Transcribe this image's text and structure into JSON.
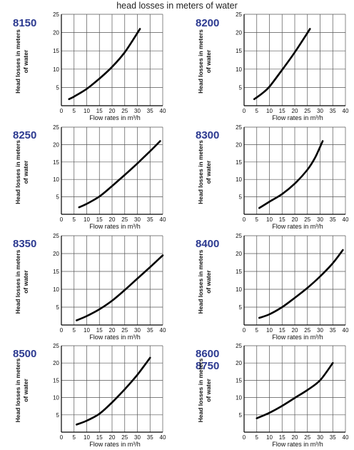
{
  "page": {
    "title": "head losses in meters of water"
  },
  "colors": {
    "model_label": "#2b3990",
    "curve": "#000000",
    "grid": "#555555"
  },
  "chart_data": [
    {
      "type": "line",
      "model_labels": [
        "8150"
      ],
      "ylabel_lines": [
        "Head losses in meters",
        "of water"
      ],
      "xlabel": "Flow rates in m³/h",
      "xlim": [
        0,
        40
      ],
      "ylim": [
        0,
        25
      ],
      "xticks": [
        0,
        5,
        10,
        15,
        20,
        25,
        30,
        35,
        40
      ],
      "yticks": [
        5,
        10,
        15,
        20,
        25
      ],
      "grid": true,
      "series": [
        {
          "x": [
            3,
            5,
            10,
            15,
            20,
            25,
            31
          ],
          "y": [
            1.8,
            2.5,
            4.6,
            7.4,
            10.6,
            14.6,
            21
          ]
        }
      ]
    },
    {
      "type": "line",
      "model_labels": [
        "8200"
      ],
      "ylabel_lines": [
        "Head losses in meters",
        "of water"
      ],
      "xlabel": "Flow rates in m³/h",
      "xlim": [
        0,
        40
      ],
      "ylim": [
        0,
        25
      ],
      "xticks": [
        0,
        5,
        10,
        15,
        20,
        25,
        30,
        35,
        40
      ],
      "yticks": [
        5,
        10,
        15,
        20,
        25
      ],
      "grid": true,
      "series": [
        {
          "x": [
            4,
            7,
            10,
            15,
            20,
            26
          ],
          "y": [
            1.8,
            3.3,
            5.2,
            9.8,
            14.6,
            21
          ]
        }
      ]
    },
    {
      "type": "line",
      "model_labels": [
        "8250"
      ],
      "ylabel_lines": [
        "Head losses in meters",
        "of water"
      ],
      "xlabel": "Flow rates in m³/h",
      "xlim": [
        0,
        40
      ],
      "ylim": [
        0,
        25
      ],
      "xticks": [
        0,
        5,
        10,
        15,
        20,
        25,
        30,
        35,
        40
      ],
      "yticks": [
        5,
        10,
        15,
        20,
        25
      ],
      "grid": true,
      "series": [
        {
          "x": [
            7,
            10,
            15,
            20,
            25,
            30,
            35,
            39
          ],
          "y": [
            2,
            3,
            5.1,
            8.1,
            11.3,
            14.6,
            18.1,
            21
          ]
        }
      ]
    },
    {
      "type": "line",
      "model_labels": [
        "8300"
      ],
      "ylabel_lines": [
        "Head losses in meters",
        "of water"
      ],
      "xlabel": "Flow rates in m³/h",
      "xlim": [
        0,
        40
      ],
      "ylim": [
        0,
        25
      ],
      "xticks": [
        0,
        5,
        10,
        15,
        20,
        25,
        30,
        35,
        40
      ],
      "yticks": [
        5,
        10,
        15,
        20,
        25
      ],
      "grid": true,
      "series": [
        {
          "x": [
            6,
            10,
            15,
            20,
            25,
            28,
            31
          ],
          "y": [
            1.8,
            3.6,
            5.8,
            8.8,
            12.8,
            16.2,
            21
          ]
        }
      ]
    },
    {
      "type": "line",
      "model_labels": [
        "8350"
      ],
      "ylabel_lines": [
        "Head losses in meters",
        "of water"
      ],
      "xlabel": "Flow rates in m³/h",
      "xlim": [
        0,
        40
      ],
      "ylim": [
        0,
        25
      ],
      "xticks": [
        0,
        5,
        10,
        15,
        20,
        25,
        30,
        35,
        40
      ],
      "yticks": [
        5,
        10,
        15,
        20,
        25
      ],
      "grid": true,
      "series": [
        {
          "x": [
            6,
            10,
            15,
            20,
            25,
            30,
            35,
            40
          ],
          "y": [
            1.3,
            2.5,
            4.4,
            6.8,
            9.8,
            13,
            16.2,
            19.5
          ]
        }
      ]
    },
    {
      "type": "line",
      "model_labels": [
        "8400"
      ],
      "ylabel_lines": [
        "Head losses in meters",
        "of water"
      ],
      "xlabel": "Flow rates in m³/h",
      "xlim": [
        0,
        40
      ],
      "ylim": [
        0,
        25
      ],
      "xticks": [
        0,
        5,
        10,
        15,
        20,
        25,
        30,
        35,
        40
      ],
      "yticks": [
        5,
        10,
        15,
        20,
        25
      ],
      "grid": true,
      "series": [
        {
          "x": [
            6,
            10,
            15,
            20,
            25,
            30,
            35,
            39
          ],
          "y": [
            2,
            3,
            5,
            7.6,
            10.4,
            13.6,
            17.3,
            21
          ]
        }
      ]
    },
    {
      "type": "line",
      "model_labels": [
        "8500"
      ],
      "ylabel_lines": [
        "Head losses in meters",
        "of water"
      ],
      "xlabel": "Flow rates in m³/h",
      "xlim": [
        0,
        40
      ],
      "ylim": [
        0,
        25
      ],
      "xticks": [
        0,
        5,
        10,
        15,
        20,
        25,
        30,
        35,
        40
      ],
      "yticks": [
        5,
        10,
        15,
        20,
        25
      ],
      "grid": true,
      "series": [
        {
          "x": [
            6,
            10,
            15,
            20,
            25,
            30,
            35
          ],
          "y": [
            2.2,
            3.3,
            5.3,
            8.6,
            12.4,
            16.6,
            21.5
          ]
        }
      ]
    },
    {
      "type": "line",
      "model_labels": [
        "8600",
        "8750"
      ],
      "ylabel_lines": [
        "Head losses in meters",
        "of water"
      ],
      "xlabel": "Flow rates in m³/h",
      "xlim": [
        0,
        40
      ],
      "ylim": [
        0,
        25
      ],
      "xticks": [
        0,
        5,
        10,
        15,
        20,
        25,
        30,
        35,
        40
      ],
      "yticks": [
        5,
        10,
        15,
        20,
        25
      ],
      "grid": true,
      "series": [
        {
          "x": [
            5,
            10,
            15,
            20,
            25,
            30,
            35
          ],
          "y": [
            4,
            5.6,
            7.6,
            9.9,
            12.2,
            15,
            20
          ]
        }
      ]
    }
  ]
}
